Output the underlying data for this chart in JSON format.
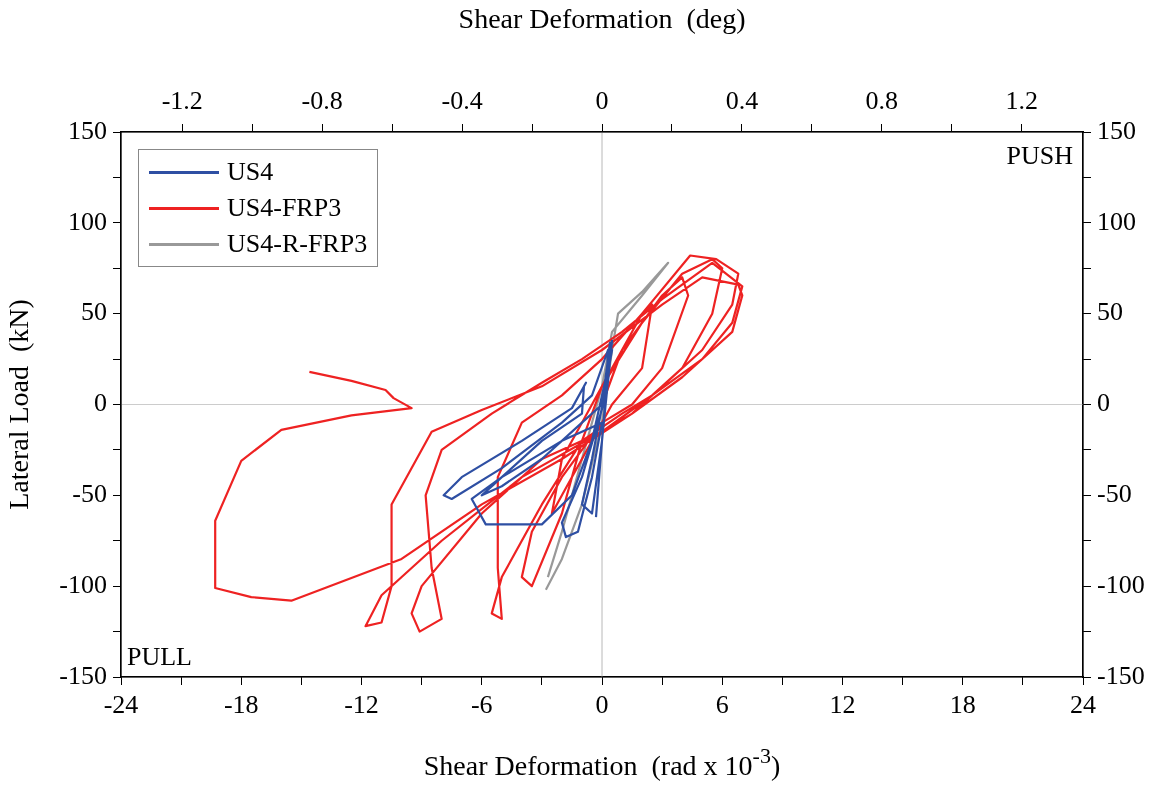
{
  "chart_data": {
    "type": "line",
    "xlabel": "Shear Deformation  (rad x 10$^{-3}$)",
    "x2label": "Shear Deformation  (deg)",
    "ylabel": "Lateral Load  (kN)",
    "xlim": [
      -24,
      24
    ],
    "xticks": [
      -24,
      {
        "value": -21,
        "label": null
      },
      -18,
      {
        "value": -15,
        "label": null
      },
      -12,
      {
        "value": -9,
        "label": null
      },
      -6,
      {
        "value": -3,
        "label": null
      },
      0,
      {
        "value": 3,
        "label": null
      },
      6,
      {
        "value": 9,
        "label": null
      },
      12,
      {
        "value": 15,
        "label": null
      },
      18,
      {
        "value": 21,
        "label": null
      },
      24
    ],
    "x2lim": [
      -1.375,
      1.375
    ],
    "x2ticks": [
      -1.2,
      {
        "value": -1,
        "label": null
      },
      -0.8,
      {
        "value": -0.6,
        "label": null
      },
      -0.4,
      {
        "value": -0.2,
        "label": null
      },
      0,
      {
        "value": 0.2,
        "label": null
      },
      0.4,
      {
        "value": 0.6,
        "label": null
      },
      0.8,
      {
        "value": 1,
        "label": null
      },
      1.2
    ],
    "ylim": [
      -150,
      150
    ],
    "yticks": [
      -150,
      {
        "value": -125,
        "label": null
      },
      -100,
      {
        "value": -75,
        "label": null
      },
      -50,
      {
        "value": -25,
        "label": null
      },
      0,
      {
        "value": 25,
        "label": null
      },
      50,
      {
        "value": 75,
        "label": null
      },
      100,
      {
        "value": 125,
        "label": null
      },
      150
    ],
    "y2lim": [
      -150,
      150
    ],
    "y2ticks": [
      -150,
      {
        "value": -125,
        "label": null
      },
      -100,
      {
        "value": -75,
        "label": null
      },
      -50,
      {
        "value": -25,
        "label": null
      },
      0,
      {
        "value": 25,
        "label": null
      },
      50,
      {
        "value": 75,
        "label": null
      },
      100,
      {
        "value": 125,
        "label": null
      },
      150
    ],
    "grid": false,
    "legend": "top left",
    "marker": "none",
    "line_style": "solid",
    "ref_lines": [
      {
        "axis": "x",
        "value": 0,
        "color": "#b8b8b8"
      },
      {
        "axis": "y",
        "value": 0,
        "color": "#cccccc"
      }
    ],
    "annotations": [
      "PUSH",
      "PULL"
    ],
    "series": [
      {
        "name": "US4",
        "color": "#2e4fa3",
        "x": [
          0,
          0.3,
          0.4,
          0.2,
          -0.5,
          -1,
          -0.5,
          0,
          0.3,
          0.5,
          0,
          -1,
          -3,
          -5,
          -6,
          -5,
          -3,
          -1,
          -0.9,
          -0.8,
          -1.5,
          -4,
          -7,
          -7.9,
          -7.5,
          -5,
          -2,
          -0.5,
          0.3,
          0.2,
          -1,
          -2,
          -1.8,
          -1.2,
          -0.5,
          0,
          -2,
          -5,
          -6.5,
          -5.8,
          -3,
          -1.5,
          -0.5,
          0.3,
          0.5,
          0,
          -0.3
        ],
        "values": [
          0,
          25,
          34,
          10,
          -30,
          -55,
          -60,
          -20,
          20,
          30,
          0,
          -10,
          -30,
          -45,
          -50,
          -40,
          -20,
          -5,
          10,
          12,
          -2,
          -20,
          -40,
          -50,
          -52,
          -35,
          -10,
          5,
          30,
          5,
          -40,
          -65,
          -73,
          -70,
          -40,
          -10,
          -20,
          -40,
          -52,
          -66,
          -66,
          -50,
          -20,
          20,
          35,
          -20,
          -62
        ]
      },
      {
        "name": "US4-FRP3",
        "color": "#ee2222",
        "x": [
          0,
          1,
          2,
          2.5,
          2,
          0.5,
          -1,
          -2,
          -2.5,
          -2,
          -1,
          0,
          1,
          3,
          4,
          4.3,
          3,
          1.5,
          0,
          -2,
          -3.5,
          -4,
          -3.5,
          -2,
          -1,
          0,
          2,
          4,
          5.5,
          6,
          5.5,
          4,
          2.5,
          1,
          -1,
          -3,
          -5,
          -5.5,
          -5,
          -5.2,
          -5.2,
          -4,
          -2,
          0,
          2,
          4.4,
          5.7,
          6.8,
          6.5,
          5,
          3,
          1.5,
          0,
          -3,
          -6,
          -9,
          -9.5,
          -9.1,
          -8,
          -8.5,
          -8.8,
          -8,
          -5.5,
          -3,
          -1,
          1,
          3,
          5.5,
          7,
          6.5,
          5,
          2.5,
          0,
          -4,
          -8,
          -11,
          -11.8,
          -11,
          -10.5,
          -10.5,
          -8.5,
          -6,
          -3,
          0,
          3,
          5,
          6.8,
          7,
          6.5,
          4,
          1.5,
          -2,
          -6,
          -10,
          -15.5,
          -17.5,
          -19.3,
          -19.3,
          -18,
          -16,
          -12.5,
          -9.5,
          -10.4,
          -10.8,
          -12.5,
          -14.6
        ],
        "values": [
          0,
          30,
          50,
          55,
          20,
          0,
          -30,
          -50,
          -60,
          -30,
          -10,
          10,
          30,
          60,
          70,
          60,
          20,
          0,
          -10,
          -40,
          -70,
          -95,
          -100,
          -60,
          -20,
          10,
          45,
          72,
          80,
          75,
          50,
          20,
          5,
          -5,
          -20,
          -55,
          -95,
          -115,
          -118,
          -90,
          -40,
          -10,
          5,
          25,
          50,
          82,
          80,
          72,
          55,
          30,
          10,
          -5,
          -15,
          -30,
          -60,
          -100,
          -115,
          -125,
          -118,
          -90,
          -50,
          -25,
          -5,
          12,
          25,
          40,
          58,
          78,
          65,
          45,
          25,
          5,
          -15,
          -40,
          -75,
          -105,
          -122,
          -120,
          -100,
          -55,
          -15,
          -3,
          10,
          30,
          55,
          70,
          66,
          60,
          40,
          15,
          -5,
          -30,
          -55,
          -85,
          -108,
          -106,
          -101,
          -64,
          -31,
          -14,
          -6,
          -2,
          3.5,
          8,
          13,
          18
        ]
      },
      {
        "name": "US4-R-FRP3",
        "color": "#999999",
        "x": [
          -2.8,
          -2,
          -1,
          0,
          0.5,
          0.8,
          2,
          3.3,
          2,
          0.5,
          0,
          -1,
          -2,
          -2.7
        ],
        "values": [
          -102,
          -85,
          -55,
          -10,
          30,
          50,
          62,
          78,
          60,
          40,
          10,
          -30,
          -70,
          -95
        ]
      }
    ]
  }
}
